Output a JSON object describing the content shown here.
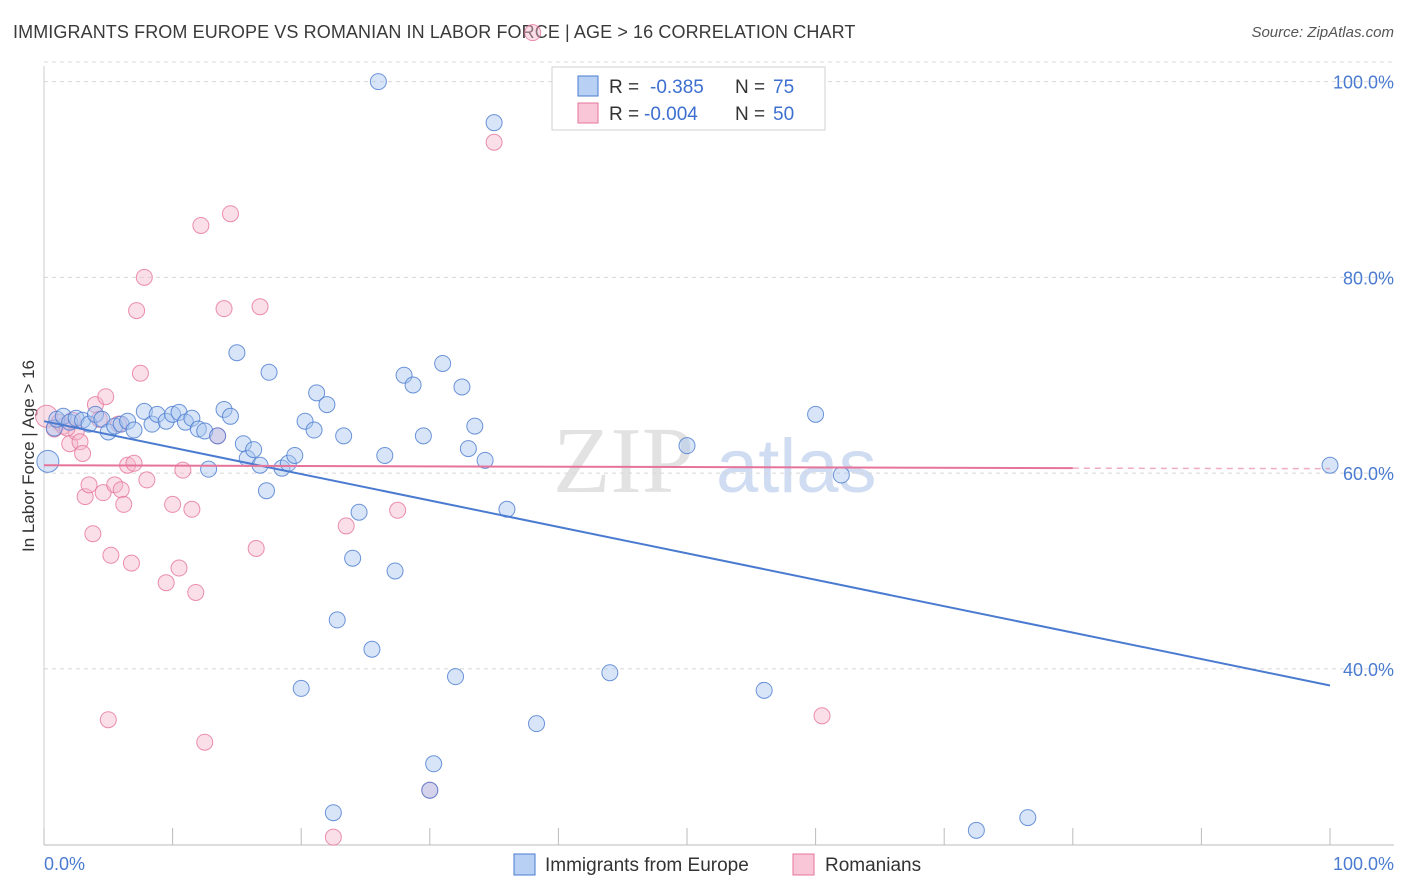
{
  "header": {
    "title": "IMMIGRANTS FROM EUROPE VS ROMANIAN IN LABOR FORCE | AGE > 16 CORRELATION CHART",
    "source": "Source: ZipAtlas.com"
  },
  "watermark": {
    "zip": "ZIP",
    "atlas": "atlas"
  },
  "colors": {
    "blue": "#4a7bd0",
    "blue_fill": "#a9c6f0",
    "pink": "#e6749a",
    "pink_fill": "#f5b8cc",
    "grid": "#d8d8d8"
  },
  "legend": {
    "rows": [
      {
        "r_label": "R =",
        "r_value": "-0.385",
        "n_label": "N =",
        "n_value": "75",
        "series": "blue"
      },
      {
        "r_label": "R =",
        "r_value": "-0.004",
        "n_label": "N =",
        "n_value": "50",
        "series": "pink"
      }
    ]
  },
  "bottom_legend": {
    "blue": "Immigrants from Europe",
    "pink": "Romanians"
  },
  "chart_data": {
    "type": "scatter",
    "title": "IMMIGRANTS FROM EUROPE VS ROMANIAN IN LABOR FORCE | AGE > 16 CORRELATION CHART",
    "xlabel": "",
    "ylabel": "In Labor Force | Age > 16",
    "xlim": [
      0,
      100
    ],
    "ylim": [
      22,
      102
    ],
    "x_tick_labels": [
      "0.0%",
      "100.0%"
    ],
    "y_ticks": [
      40,
      60,
      80,
      100
    ],
    "y_tick_labels": [
      "40.0%",
      "60.0%",
      "80.0%",
      "100.0%"
    ],
    "series": [
      {
        "name": "Immigrants from Europe",
        "color": "blue",
        "trend": {
          "x0": 0,
          "y0": 65.3,
          "x1": 100,
          "y1": 38.3
        },
        "points": [
          [
            0.3,
            61.2
          ],
          [
            0.8,
            64.6
          ],
          [
            1.0,
            65.5
          ],
          [
            1.5,
            65.8
          ],
          [
            2.0,
            65.2
          ],
          [
            2.5,
            65.6
          ],
          [
            3.0,
            65.4
          ],
          [
            3.5,
            65.0
          ],
          [
            4.0,
            66.0
          ],
          [
            4.5,
            65.5
          ],
          [
            5.0,
            64.2
          ],
          [
            5.5,
            64.8
          ],
          [
            6.0,
            65.0
          ],
          [
            6.5,
            65.3
          ],
          [
            7.0,
            64.4
          ],
          [
            7.8,
            66.3
          ],
          [
            8.4,
            65.0
          ],
          [
            8.8,
            66.0
          ],
          [
            9.5,
            65.3
          ],
          [
            10.0,
            66.0
          ],
          [
            10.5,
            66.2
          ],
          [
            11.0,
            65.2
          ],
          [
            11.5,
            65.6
          ],
          [
            12.0,
            64.5
          ],
          [
            12.5,
            64.3
          ],
          [
            12.8,
            60.4
          ],
          [
            13.5,
            63.8
          ],
          [
            14.0,
            66.5
          ],
          [
            14.5,
            65.8
          ],
          [
            15.0,
            72.3
          ],
          [
            15.5,
            63.0
          ],
          [
            15.8,
            61.5
          ],
          [
            16.3,
            62.4
          ],
          [
            16.8,
            60.8
          ],
          [
            17.3,
            58.2
          ],
          [
            17.5,
            70.3
          ],
          [
            18.5,
            60.5
          ],
          [
            19.0,
            61.0
          ],
          [
            19.5,
            61.8
          ],
          [
            20.0,
            38.0
          ],
          [
            20.3,
            65.3
          ],
          [
            21.0,
            64.4
          ],
          [
            21.2,
            68.2
          ],
          [
            22.0,
            67.0
          ],
          [
            22.5,
            25.3
          ],
          [
            22.8,
            45.0
          ],
          [
            23.3,
            63.8
          ],
          [
            24.0,
            51.3
          ],
          [
            24.5,
            56.0
          ],
          [
            25.5,
            42.0
          ],
          [
            26.0,
            100.0
          ],
          [
            26.5,
            61.8
          ],
          [
            27.3,
            50.0
          ],
          [
            28.0,
            70.0
          ],
          [
            28.7,
            69.0
          ],
          [
            29.5,
            63.8
          ],
          [
            30.3,
            30.3
          ],
          [
            31.0,
            71.2
          ],
          [
            32.0,
            39.2
          ],
          [
            32.5,
            68.8
          ],
          [
            33.0,
            62.5
          ],
          [
            33.5,
            64.8
          ],
          [
            34.3,
            61.3
          ],
          [
            35.0,
            95.8
          ],
          [
            36.0,
            56.3
          ],
          [
            38.3,
            34.4
          ],
          [
            44.0,
            39.6
          ],
          [
            50.0,
            62.8
          ],
          [
            56.0,
            37.8
          ],
          [
            60.0,
            66.0
          ],
          [
            62.0,
            59.8
          ],
          [
            72.5,
            23.5
          ],
          [
            76.5,
            24.8
          ],
          [
            100.0,
            60.8
          ],
          [
            30.0,
            27.6
          ]
        ]
      },
      {
        "name": "Romanians",
        "color": "pink",
        "trend": {
          "x0": 0,
          "y0": 60.8,
          "x1": 80,
          "y1": 60.5
        },
        "points": [
          [
            0.2,
            65.8
          ],
          [
            0.8,
            64.5
          ],
          [
            1.2,
            65.2
          ],
          [
            1.5,
            64.8
          ],
          [
            2.0,
            63.0
          ],
          [
            2.5,
            64.2
          ],
          [
            2.8,
            63.2
          ],
          [
            3.0,
            62.0
          ],
          [
            3.2,
            57.6
          ],
          [
            3.5,
            58.8
          ],
          [
            3.8,
            53.8
          ],
          [
            4.0,
            67.0
          ],
          [
            4.3,
            65.5
          ],
          [
            4.6,
            58.0
          ],
          [
            4.8,
            67.8
          ],
          [
            5.0,
            34.8
          ],
          [
            5.2,
            51.6
          ],
          [
            5.5,
            58.8
          ],
          [
            5.8,
            65.0
          ],
          [
            6.0,
            58.3
          ],
          [
            6.2,
            56.8
          ],
          [
            6.5,
            60.8
          ],
          [
            6.8,
            50.8
          ],
          [
            7.0,
            61.0
          ],
          [
            7.2,
            76.6
          ],
          [
            7.5,
            70.2
          ],
          [
            7.8,
            80.0
          ],
          [
            8.0,
            59.3
          ],
          [
            9.5,
            48.8
          ],
          [
            10.0,
            56.8
          ],
          [
            10.5,
            50.3
          ],
          [
            10.8,
            60.3
          ],
          [
            11.5,
            56.3
          ],
          [
            11.8,
            47.8
          ],
          [
            12.2,
            85.3
          ],
          [
            12.5,
            32.5
          ],
          [
            13.5,
            63.8
          ],
          [
            14.0,
            76.8
          ],
          [
            14.5,
            86.5
          ],
          [
            16.5,
            52.3
          ],
          [
            16.8,
            77.0
          ],
          [
            22.5,
            22.8
          ],
          [
            23.5,
            54.6
          ],
          [
            27.5,
            56.2
          ],
          [
            30.0,
            27.6
          ],
          [
            35.0,
            93.8
          ],
          [
            38.0,
            105.0
          ],
          [
            60.5,
            35.2
          ],
          [
            1.8,
            64.6
          ],
          [
            2.2,
            65.4
          ]
        ]
      }
    ]
  }
}
